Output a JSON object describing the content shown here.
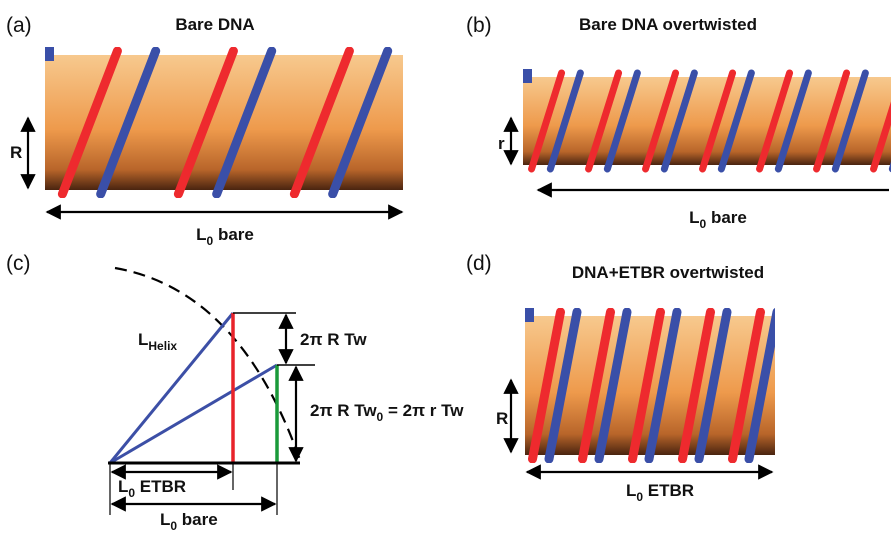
{
  "panels": [
    {
      "label": "(a)",
      "title": "Bare DNA",
      "radius": "R",
      "length": [
        "L",
        "0",
        " bare"
      ]
    },
    {
      "label": "(b)",
      "title": "Bare DNA overtwisted",
      "radius": "r",
      "length": [
        "L",
        "0",
        " bare"
      ]
    },
    {
      "label": "(c)",
      "helix": [
        "L",
        "Helix"
      ],
      "twist": "2π R Tw",
      "twist0": [
        "2π R Tw",
        "0",
        " = 2π r Tw"
      ],
      "length_etbr": [
        "L",
        "0",
        " ETBR"
      ],
      "length_bare": [
        "L",
        "0",
        " bare"
      ]
    },
    {
      "label": "(d)",
      "title": "DNA+ETBR overtwisted",
      "radius": "R",
      "length": [
        "L",
        "0",
        " ETBR"
      ]
    }
  ]
}
